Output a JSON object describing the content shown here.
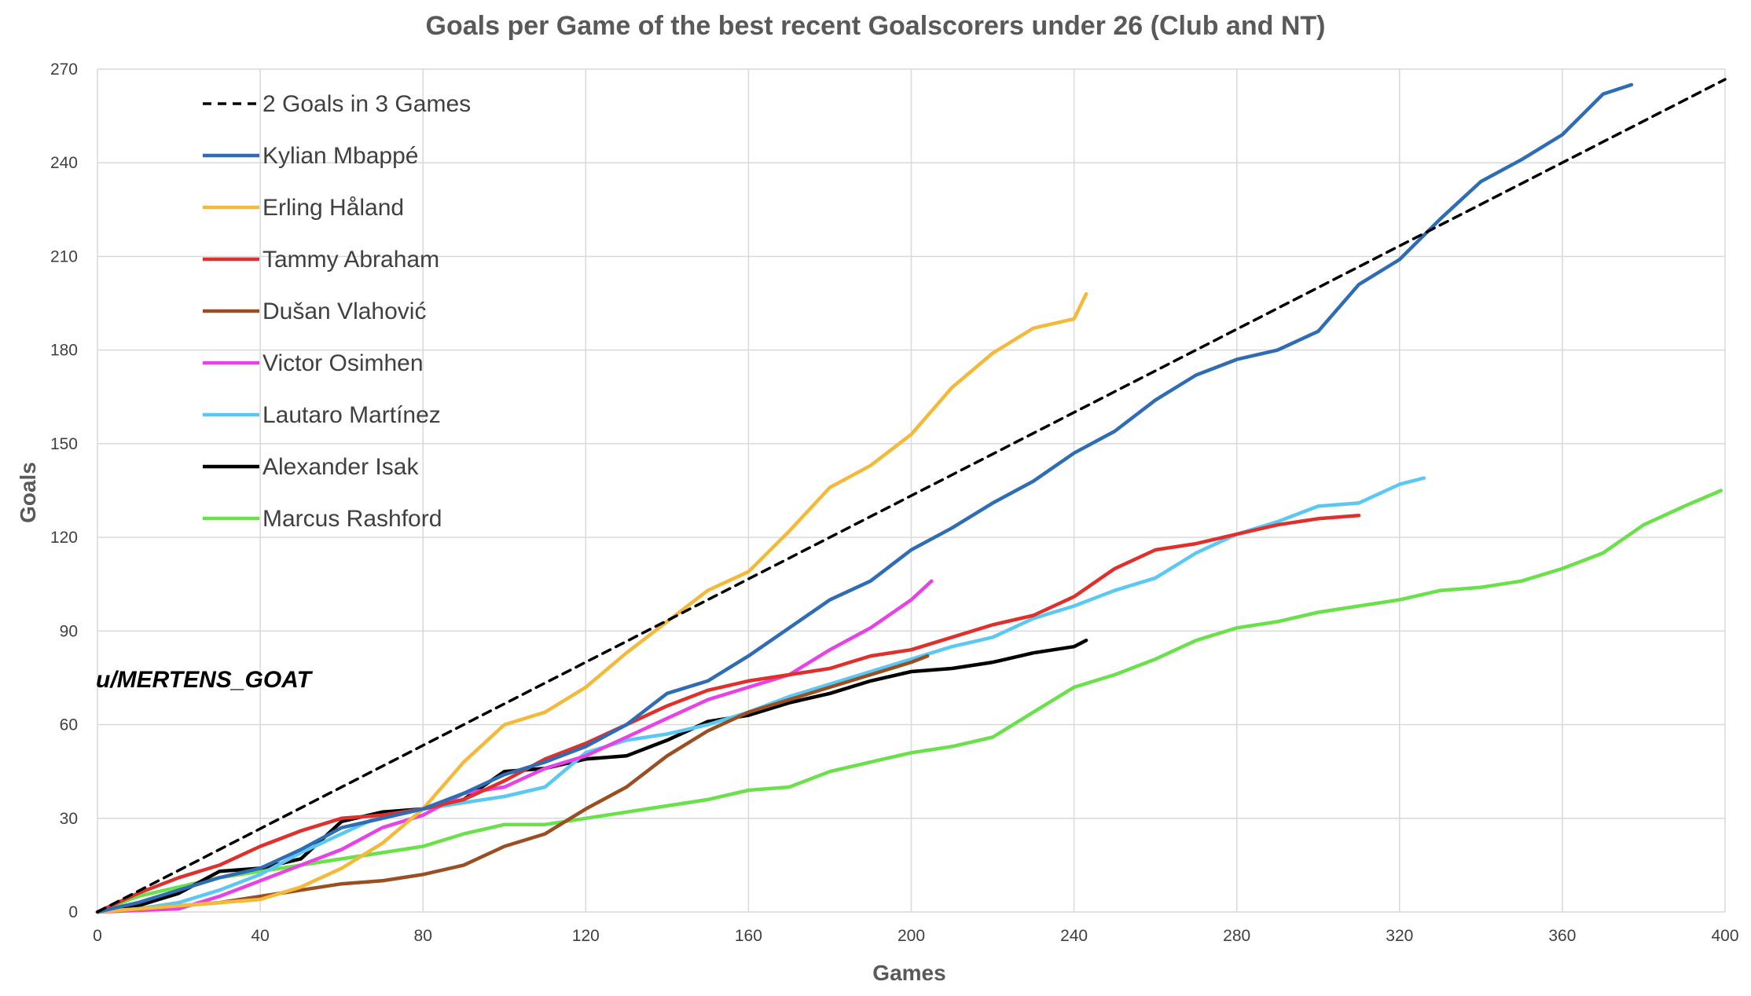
{
  "chart_data": {
    "type": "line",
    "title": "Goals per Game of the best recent Goalscorers under 26 (Club and NT)",
    "xlabel": "Games",
    "ylabel": "Goals",
    "xlim": [
      0,
      400
    ],
    "ylim": [
      0,
      270
    ],
    "x_ticks": [
      0,
      40,
      80,
      120,
      160,
      200,
      240,
      280,
      320,
      360,
      400
    ],
    "y_ticks": [
      0,
      30,
      60,
      90,
      120,
      150,
      180,
      210,
      240,
      270
    ],
    "grid": true,
    "legend_position": "top-left",
    "annotation": "u/MERTENS_GOAT",
    "series": [
      {
        "name": "2 Goals in 3 Games",
        "color": "#000000",
        "dashed": true,
        "points": [
          [
            0,
            0
          ],
          [
            400,
            266.7
          ]
        ]
      },
      {
        "name": "Kylian Mbappé",
        "color": "#2e6db4",
        "dashed": false,
        "points": [
          [
            0,
            0
          ],
          [
            10,
            3
          ],
          [
            20,
            7
          ],
          [
            30,
            11
          ],
          [
            40,
            14
          ],
          [
            50,
            20
          ],
          [
            60,
            27
          ],
          [
            70,
            30
          ],
          [
            80,
            33
          ],
          [
            90,
            38
          ],
          [
            100,
            44
          ],
          [
            110,
            48
          ],
          [
            120,
            53
          ],
          [
            130,
            60
          ],
          [
            140,
            70
          ],
          [
            150,
            74
          ],
          [
            160,
            82
          ],
          [
            170,
            91
          ],
          [
            180,
            100
          ],
          [
            190,
            106
          ],
          [
            200,
            116
          ],
          [
            210,
            123
          ],
          [
            220,
            131
          ],
          [
            230,
            138
          ],
          [
            240,
            147
          ],
          [
            250,
            154
          ],
          [
            260,
            164
          ],
          [
            270,
            172
          ],
          [
            280,
            177
          ],
          [
            290,
            180
          ],
          [
            300,
            186
          ],
          [
            310,
            201
          ],
          [
            320,
            209
          ],
          [
            330,
            222
          ],
          [
            340,
            234
          ],
          [
            350,
            241
          ],
          [
            360,
            249
          ],
          [
            370,
            262
          ],
          [
            377,
            265
          ]
        ]
      },
      {
        "name": "Erling Håland",
        "color": "#f5b93a",
        "dashed": false,
        "points": [
          [
            0,
            0
          ],
          [
            20,
            2
          ],
          [
            40,
            4
          ],
          [
            50,
            8
          ],
          [
            60,
            14
          ],
          [
            70,
            22
          ],
          [
            80,
            33
          ],
          [
            90,
            48
          ],
          [
            100,
            60
          ],
          [
            110,
            64
          ],
          [
            120,
            72
          ],
          [
            130,
            83
          ],
          [
            140,
            93
          ],
          [
            150,
            103
          ],
          [
            160,
            109
          ],
          [
            170,
            122
          ],
          [
            180,
            136
          ],
          [
            190,
            143
          ],
          [
            200,
            153
          ],
          [
            210,
            168
          ],
          [
            220,
            179
          ],
          [
            230,
            187
          ],
          [
            240,
            190
          ],
          [
            243,
            198
          ]
        ]
      },
      {
        "name": "Tammy Abraham",
        "color": "#e0302b",
        "dashed": false,
        "points": [
          [
            0,
            0
          ],
          [
            10,
            6
          ],
          [
            20,
            11
          ],
          [
            30,
            15
          ],
          [
            40,
            21
          ],
          [
            50,
            26
          ],
          [
            60,
            30
          ],
          [
            70,
            31
          ],
          [
            80,
            33
          ],
          [
            90,
            36
          ],
          [
            100,
            42
          ],
          [
            110,
            49
          ],
          [
            120,
            54
          ],
          [
            130,
            60
          ],
          [
            140,
            66
          ],
          [
            150,
            71
          ],
          [
            160,
            74
          ],
          [
            170,
            76
          ],
          [
            180,
            78
          ],
          [
            190,
            82
          ],
          [
            200,
            84
          ],
          [
            210,
            88
          ],
          [
            220,
            92
          ],
          [
            230,
            95
          ],
          [
            240,
            101
          ],
          [
            250,
            110
          ],
          [
            260,
            116
          ],
          [
            270,
            118
          ],
          [
            280,
            121
          ],
          [
            290,
            124
          ],
          [
            300,
            126
          ],
          [
            310,
            127
          ]
        ]
      },
      {
        "name": "Dušan Vlahović",
        "color": "#9a4f22",
        "dashed": false,
        "points": [
          [
            0,
            0
          ],
          [
            20,
            2
          ],
          [
            30,
            3
          ],
          [
            40,
            5
          ],
          [
            50,
            7
          ],
          [
            60,
            9
          ],
          [
            70,
            10
          ],
          [
            80,
            12
          ],
          [
            90,
            15
          ],
          [
            100,
            21
          ],
          [
            110,
            25
          ],
          [
            120,
            33
          ],
          [
            130,
            40
          ],
          [
            140,
            50
          ],
          [
            150,
            58
          ],
          [
            160,
            64
          ],
          [
            170,
            68
          ],
          [
            180,
            72
          ],
          [
            190,
            76
          ],
          [
            200,
            80
          ],
          [
            204,
            82
          ]
        ]
      },
      {
        "name": "Victor Osimhen",
        "color": "#e642e6",
        "dashed": false,
        "points": [
          [
            0,
            0
          ],
          [
            20,
            1
          ],
          [
            30,
            5
          ],
          [
            40,
            10
          ],
          [
            50,
            15
          ],
          [
            60,
            20
          ],
          [
            70,
            27
          ],
          [
            80,
            31
          ],
          [
            90,
            38
          ],
          [
            100,
            40
          ],
          [
            110,
            46
          ],
          [
            120,
            50
          ],
          [
            130,
            56
          ],
          [
            140,
            62
          ],
          [
            150,
            68
          ],
          [
            160,
            72
          ],
          [
            170,
            76
          ],
          [
            180,
            84
          ],
          [
            190,
            91
          ],
          [
            200,
            100
          ],
          [
            205,
            106
          ]
        ]
      },
      {
        "name": "Lautaro Martínez",
        "color": "#5ac8f2",
        "dashed": false,
        "points": [
          [
            0,
            0
          ],
          [
            10,
            1
          ],
          [
            20,
            3
          ],
          [
            30,
            7
          ],
          [
            40,
            12
          ],
          [
            50,
            19
          ],
          [
            60,
            25
          ],
          [
            70,
            31
          ],
          [
            80,
            33
          ],
          [
            90,
            35
          ],
          [
            100,
            37
          ],
          [
            110,
            40
          ],
          [
            120,
            51
          ],
          [
            130,
            55
          ],
          [
            140,
            57
          ],
          [
            150,
            60
          ],
          [
            160,
            64
          ],
          [
            170,
            69
          ],
          [
            180,
            73
          ],
          [
            190,
            77
          ],
          [
            200,
            81
          ],
          [
            210,
            85
          ],
          [
            220,
            88
          ],
          [
            230,
            94
          ],
          [
            240,
            98
          ],
          [
            250,
            103
          ],
          [
            260,
            107
          ],
          [
            270,
            115
          ],
          [
            280,
            121
          ],
          [
            290,
            125
          ],
          [
            300,
            130
          ],
          [
            310,
            131
          ],
          [
            320,
            137
          ],
          [
            326,
            139
          ]
        ]
      },
      {
        "name": "Alexander Isak",
        "color": "#000000",
        "dashed": false,
        "points": [
          [
            0,
            0
          ],
          [
            10,
            2
          ],
          [
            20,
            6
          ],
          [
            30,
            13
          ],
          [
            40,
            14
          ],
          [
            50,
            17
          ],
          [
            60,
            29
          ],
          [
            70,
            32
          ],
          [
            80,
            33
          ],
          [
            90,
            36
          ],
          [
            100,
            45
          ],
          [
            110,
            46
          ],
          [
            120,
            49
          ],
          [
            130,
            50
          ],
          [
            140,
            55
          ],
          [
            150,
            61
          ],
          [
            160,
            63
          ],
          [
            170,
            67
          ],
          [
            180,
            70
          ],
          [
            190,
            74
          ],
          [
            200,
            77
          ],
          [
            210,
            78
          ],
          [
            220,
            80
          ],
          [
            230,
            83
          ],
          [
            240,
            85
          ],
          [
            243,
            87
          ]
        ]
      },
      {
        "name": "Marcus Rashford",
        "color": "#6ae04a",
        "dashed": false,
        "points": [
          [
            0,
            0
          ],
          [
            10,
            5
          ],
          [
            20,
            8
          ],
          [
            30,
            11
          ],
          [
            40,
            13
          ],
          [
            50,
            15
          ],
          [
            60,
            17
          ],
          [
            70,
            19
          ],
          [
            80,
            21
          ],
          [
            90,
            25
          ],
          [
            100,
            28
          ],
          [
            110,
            28
          ],
          [
            120,
            30
          ],
          [
            130,
            32
          ],
          [
            140,
            34
          ],
          [
            150,
            36
          ],
          [
            160,
            39
          ],
          [
            170,
            40
          ],
          [
            180,
            45
          ],
          [
            190,
            48
          ],
          [
            200,
            51
          ],
          [
            210,
            53
          ],
          [
            220,
            56
          ],
          [
            230,
            64
          ],
          [
            240,
            72
          ],
          [
            250,
            76
          ],
          [
            260,
            81
          ],
          [
            270,
            87
          ],
          [
            280,
            91
          ],
          [
            290,
            93
          ],
          [
            300,
            96
          ],
          [
            310,
            98
          ],
          [
            320,
            100
          ],
          [
            330,
            103
          ],
          [
            340,
            104
          ],
          [
            350,
            106
          ],
          [
            360,
            110
          ],
          [
            370,
            115
          ],
          [
            380,
            124
          ],
          [
            390,
            130
          ],
          [
            399,
            135
          ]
        ]
      }
    ]
  }
}
